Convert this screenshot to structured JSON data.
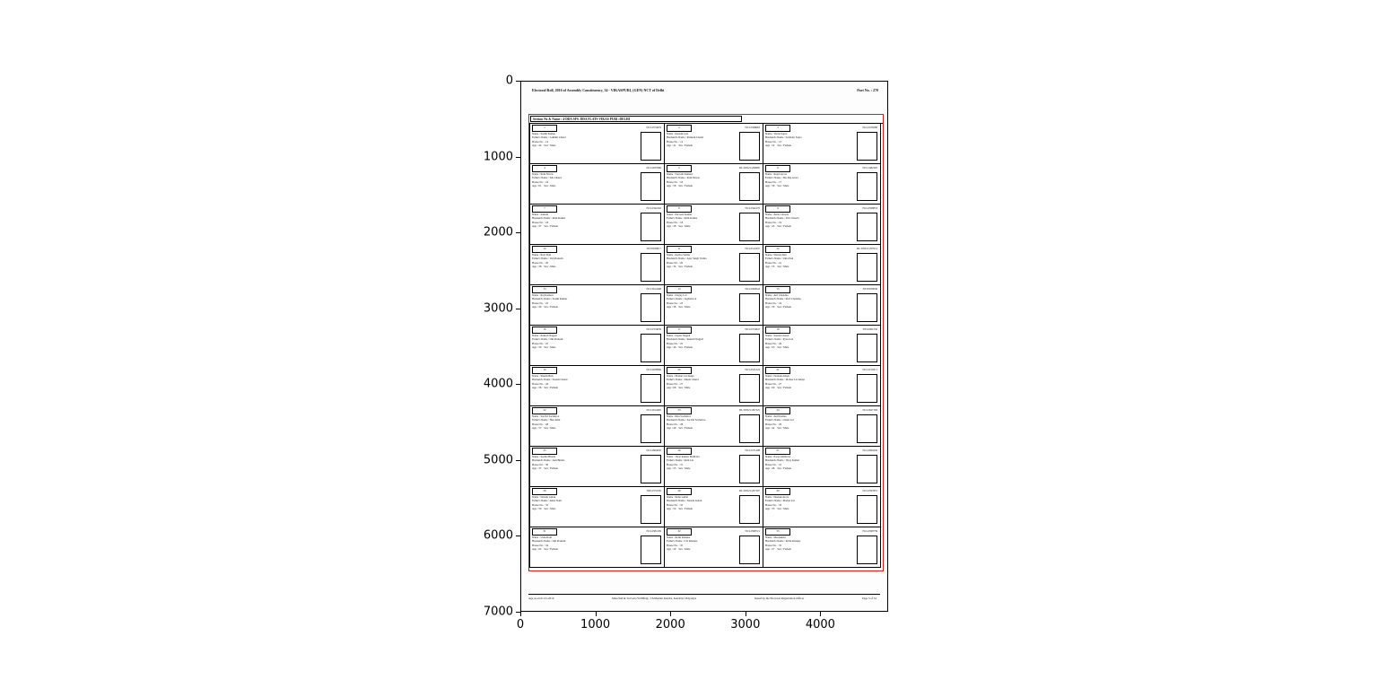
{
  "figure": {
    "y_ticks": [
      "0",
      "1000",
      "2000",
      "3000",
      "4000",
      "5000",
      "6000",
      "7000"
    ],
    "x_ticks": [
      "0",
      "1000",
      "2000",
      "3000",
      "4000"
    ]
  },
  "document": {
    "header": {
      "title": "Electoral Roll, 2016 of Assembly Constituency, 34 - VIKASPURI, (GEN) NCT of Delhi",
      "part_no": "Part No. : 270"
    },
    "section_header": "Section No & Name : 4-DDA SFS. DDA FLATS VIKAS PURI :DELHI",
    "card_labels": {
      "name": "Name",
      "house": "House No.",
      "age": "Age",
      "sex": "Sex"
    },
    "footer": {
      "left": "Age as on 01-01-2016",
      "mid_left": "Male/2nd & 3rd Gen./W.P.Bldg., Ch.Matdan Kendra, Kendriya Vidyalaya",
      "mid_right": "Issued by the Electoral Registration Officer",
      "right": "Page 5 of 32"
    },
    "cards": [
      {
        "serial": "1",
        "epic": "NCL2574679",
        "name": "Sushil Kumar",
        "rel_label": "Father's Name",
        "rel": "Lakhmi Chand",
        "house": "14",
        "age": "44",
        "sex": "Male"
      },
      {
        "serial": "2",
        "epic": "NCL2598663",
        "name": "Kusum Lata",
        "rel_label": "Husband's Name",
        "rel": "Ramesh Chand",
        "house": "14",
        "age": "41",
        "sex": "Female"
      },
      {
        "serial": "3",
        "epic": "NCL2479286",
        "name": "Veena Sapra",
        "rel_label": "Husband's Name",
        "rel": "Surinder Sapra",
        "house": "15",
        "age": "52",
        "sex": "Female"
      },
      {
        "serial": "4",
        "epic": "NCL2637686",
        "name": "Ram Niwas",
        "rel_label": "Father's Name",
        "rel": "Tek Chand",
        "house": "16",
        "age": "61",
        "sex": "Male"
      },
      {
        "serial": "5",
        "epic": "DL/03/021/296685",
        "name": "Santosh Kumari",
        "rel_label": "Husband's Name",
        "rel": "Ram Niwas",
        "house": "16",
        "age": "58",
        "sex": "Female"
      },
      {
        "serial": "6",
        "epic": "NCL1482305",
        "name": "Rajan Arora",
        "rel_label": "Father's Name",
        "rel": "Des Raj Arora",
        "house": "17",
        "age": "39",
        "sex": "Male"
      },
      {
        "serial": "7",
        "epic": "NCL2344162",
        "name": "Sudesh",
        "rel_label": "Husband's Name",
        "rel": "Ram Kumar",
        "house": "18",
        "age": "47",
        "sex": "Female"
      },
      {
        "serial": "8",
        "epic": "NCL2344170",
        "name": "Parveen Kumar",
        "rel_label": "Father's Name",
        "rel": "Ram Kumar",
        "house": "18",
        "age": "28",
        "sex": "Male"
      },
      {
        "serial": "9",
        "epic": "NCL2598853",
        "name": "Anita Chawla",
        "rel_label": "Husband's Name",
        "rel": "D K Chawla",
        "house": "19",
        "age": "45",
        "sex": "Female"
      },
      {
        "serial": "10",
        "epic": "NTT0930617",
        "name": "Ravi Dutt",
        "rel_label": "Father's Name",
        "rel": "Ved Prakash",
        "house": "20",
        "age": "36",
        "sex": "Male"
      },
      {
        "serial": "11",
        "epic": "NCL2512447",
        "name": "Kavita Verma",
        "rel_label": "Husband's Name",
        "rel": "Ajay Singh Verma",
        "house": "20",
        "age": "34",
        "sex": "Female"
      },
      {
        "serial": "12",
        "epic": "DL/03/021/297014",
        "name": "Sharad Datt",
        "rel_label": "Father's Name",
        "rel": "Uma Datt",
        "house": "21",
        "age": "55",
        "sex": "Male"
      },
      {
        "serial": "13",
        "epic": "NCL3614268",
        "name": "Raj Kumari",
        "rel_label": "Husband's Name",
        "rel": "Sushil Kumar",
        "house": "22",
        "age": "40",
        "sex": "Female"
      },
      {
        "serial": "14",
        "epic": "NCL2592043",
        "name": "Sanjay Lal",
        "rel_label": "Father's Name",
        "rel": "Jagdish Lal",
        "house": "23",
        "age": "38",
        "sex": "Male"
      },
      {
        "serial": "15",
        "epic": "NTT0930630",
        "name": "Arti Chandna",
        "rel_label": "Husband's Name",
        "rel": "Ravi Chandna",
        "house": "24",
        "age": "30",
        "sex": "Female"
      },
      {
        "serial": "16",
        "epic": "NCL2374639",
        "name": "Rakesh Nagpal",
        "rel_label": "Father's Name",
        "rel": "Om Prakash",
        "house": "25",
        "age": "50",
        "sex": "Male"
      },
      {
        "serial": "17",
        "epic": "NCL2374647",
        "name": "Sapna Nagpal",
        "rel_label": "Husband's Name",
        "rel": "Rakesh Nagpal",
        "house": "25",
        "age": "46",
        "sex": "Female"
      },
      {
        "serial": "18",
        "epic": "NTL0061230",
        "name": "Suresh Chand",
        "rel_label": "Father's Name",
        "rel": "Pyare Lal",
        "house": "26",
        "age": "63",
        "sex": "Male"
      },
      {
        "serial": "19",
        "epic": "NCL2638966",
        "name": "Shashi Bala",
        "rel_label": "Husband's Name",
        "rel": "Suresh Chand",
        "house": "26",
        "age": "58",
        "sex": "Female"
      },
      {
        "serial": "20",
        "epic": "NCL2545124",
        "name": "Mohan Lal Ahuja",
        "rel_label": "Father's Name",
        "rel": "Khem Chand",
        "house": "27",
        "age": "66",
        "sex": "Male"
      },
      {
        "serial": "21",
        "epic": "NCL3219471",
        "name": "Neelam Ahuja",
        "rel_label": "Husband's Name",
        "rel": "Mohan Lal Ahuja",
        "house": "27",
        "age": "60",
        "sex": "Female"
      },
      {
        "serial": "22",
        "epic": "NCL2614465",
        "name": "Sat Pal Sachdeva",
        "rel_label": "Father's Name",
        "rel": "Hari Ram",
        "house": "28",
        "age": "57",
        "sex": "Male"
      },
      {
        "serial": "23",
        "epic": "DL/03/021/297225",
        "name": "Ritu Sachdeva",
        "rel_label": "Husband's Name",
        "rel": "Sat Pal Sachdeva",
        "house": "28",
        "age": "49",
        "sex": "Female"
      },
      {
        "serial": "24",
        "epic": "NCL2647183",
        "name": "Anil Kumar",
        "rel_label": "Father's Name",
        "rel": "Chuni Lal",
        "house": "29",
        "age": "42",
        "sex": "Male"
      },
      {
        "serial": "25",
        "epic": "NCL2664650",
        "name": "Seema Bhatia",
        "rel_label": "Husband's Name",
        "rel": "Anil Bhatia",
        "house": "30",
        "age": "37",
        "sex": "Female"
      },
      {
        "serial": "26",
        "epic": "NCL2371408",
        "name": "Vijay Kumar Malhotra",
        "rel_label": "Father's Name",
        "rel": "Ram Lal",
        "house": "31",
        "age": "53",
        "sex": "Male"
      },
      {
        "serial": "27",
        "epic": "NCL2690456",
        "name": "Pooja Malhotra",
        "rel_label": "Husband's Name",
        "rel": "Vijay Kumar",
        "house": "31",
        "age": "48",
        "sex": "Female"
      },
      {
        "serial": "28",
        "epic": "NEL2372230",
        "name": "Naresh Gulati",
        "rel_label": "Father's Name",
        "rel": "Amar Nath",
        "house": "32",
        "age": "59",
        "sex": "Male"
      },
      {
        "serial": "29",
        "epic": "DL/03/021/297307",
        "name": "Renu Gulati",
        "rel_label": "Husband's Name",
        "rel": "Naresh Gulati",
        "house": "32",
        "age": "54",
        "sex": "Female"
      },
      {
        "serial": "30",
        "epic": "NCL2597855",
        "name": "Deepak Arora",
        "rel_label": "Father's Name",
        "rel": "Madan Lal",
        "house": "33",
        "age": "33",
        "sex": "Male"
      },
      {
        "serial": "31",
        "epic": "NCL2581439",
        "name": "Usha Rani",
        "rel_label": "Husband's Name",
        "rel": "Om Prakash",
        "house": "34",
        "age": "62",
        "sex": "Female"
      },
      {
        "serial": "32",
        "epic": "NCL2598721",
        "name": "Rohit Khanna",
        "rel_label": "Father's Name",
        "rel": "S K Khanna",
        "house": "35",
        "age": "29",
        "sex": "Male"
      },
      {
        "serial": "33",
        "epic": "NCL2598739",
        "name": "Meenakshi",
        "rel_label": "Husband's Name",
        "rel": "Rohit Khanna",
        "house": "35",
        "age": "27",
        "sex": "Female"
      }
    ]
  }
}
